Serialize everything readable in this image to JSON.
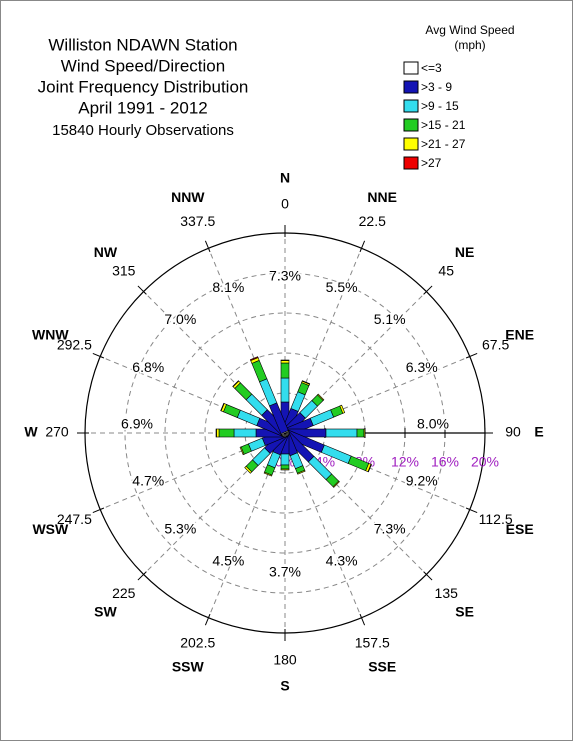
{
  "chart_data": {
    "type": "windrose",
    "title_lines": [
      "Williston NDAWN Station",
      "Wind Speed/Direction",
      "Joint Frequency Distribution",
      "April 1991 - 2012"
    ],
    "subtitle": "15840 Hourly Observations",
    "legend_title": [
      "Avg Wind Speed",
      "(mph)"
    ],
    "directions": [
      "N",
      "NNE",
      "NE",
      "ENE",
      "E",
      "ESE",
      "SE",
      "SSE",
      "S",
      "SSW",
      "SW",
      "WSW",
      "W",
      "WNW",
      "NW",
      "NNW"
    ],
    "angles": [
      0,
      22.5,
      45,
      67.5,
      90,
      112.5,
      135,
      157.5,
      180,
      202.5,
      225,
      247.5,
      270,
      292.5,
      315,
      337.5
    ],
    "direction_labels": [
      "7.3%",
      "5.5%",
      "5.1%",
      "6.3%",
      "8.0%",
      "9.2%",
      "7.3%",
      "4.3%",
      "3.7%",
      "4.5%",
      "5.3%",
      "4.7%",
      "6.9%",
      "6.8%",
      "7.0%",
      "8.1%"
    ],
    "series": [
      {
        "name": "<=3",
        "color": "#ffffff",
        "values": [
          0.1,
          0.1,
          0.1,
          0.1,
          0.1,
          0.1,
          0.1,
          0.1,
          0.1,
          0.1,
          0.1,
          0.1,
          0.1,
          0.1,
          0.1,
          0.1
        ]
      },
      {
        "name": ">3 - 9",
        "color": "#1414b4",
        "values": [
          3.0,
          2.4,
          2.4,
          2.8,
          4.0,
          4.0,
          3.6,
          2.2,
          2.0,
          2.1,
          2.4,
          2.2,
          2.8,
          2.8,
          2.8,
          3.0
        ]
      },
      {
        "name": ">9 - 15",
        "color": "#33ddee",
        "values": [
          2.4,
          1.8,
          1.7,
          2.2,
          3.1,
          2.9,
          2.5,
          1.4,
          1.1,
          1.4,
          1.7,
          1.5,
          2.2,
          2.1,
          2.2,
          2.6
        ]
      },
      {
        "name": ">15 - 21",
        "color": "#22cc22",
        "values": [
          1.5,
          1.0,
          0.8,
          1.0,
          0.7,
          1.9,
          1.0,
          0.5,
          0.4,
          0.8,
          0.9,
          0.8,
          1.5,
          1.5,
          1.6,
          2.0
        ]
      },
      {
        "name": ">21 - 27",
        "color": "#ffff00",
        "values": [
          0.25,
          0.15,
          0.1,
          0.2,
          0.1,
          0.25,
          0.1,
          0.1,
          0.1,
          0.1,
          0.2,
          0.1,
          0.25,
          0.25,
          0.25,
          0.3
        ]
      },
      {
        "name": ">27",
        "color": "#ee0000",
        "values": [
          0.05,
          0.05,
          0.0,
          0.0,
          0.0,
          0.05,
          0.0,
          0.0,
          0.0,
          0.0,
          0.0,
          0.0,
          0.05,
          0.05,
          0.05,
          0.1
        ]
      }
    ],
    "rlim": [
      0,
      20
    ],
    "rticks": [
      {
        "value": 0,
        "label": "0%"
      },
      {
        "value": 4,
        "label": "4%"
      },
      {
        "value": 8,
        "label": "8%"
      },
      {
        "value": 12,
        "label": "12%"
      },
      {
        "value": 16,
        "label": "16%"
      },
      {
        "value": 20,
        "label": "20%"
      }
    ],
    "tick_color": "#a020c0"
  }
}
